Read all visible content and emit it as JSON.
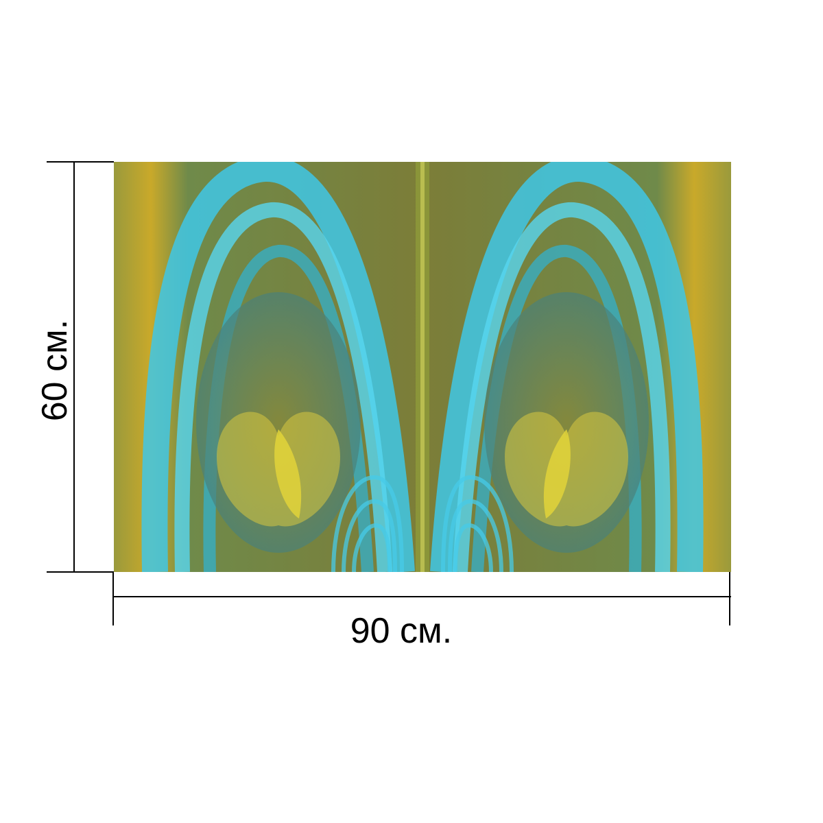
{
  "dimensions": {
    "width_label": "90 см.",
    "height_label": "60 см."
  },
  "artwork": {
    "colors": {
      "cyan": "#3fc7e6",
      "teal": "#2a8fa6",
      "olive": "#8a8a3a",
      "gold": "#c9a92a",
      "yellow": "#d9d24a"
    }
  }
}
